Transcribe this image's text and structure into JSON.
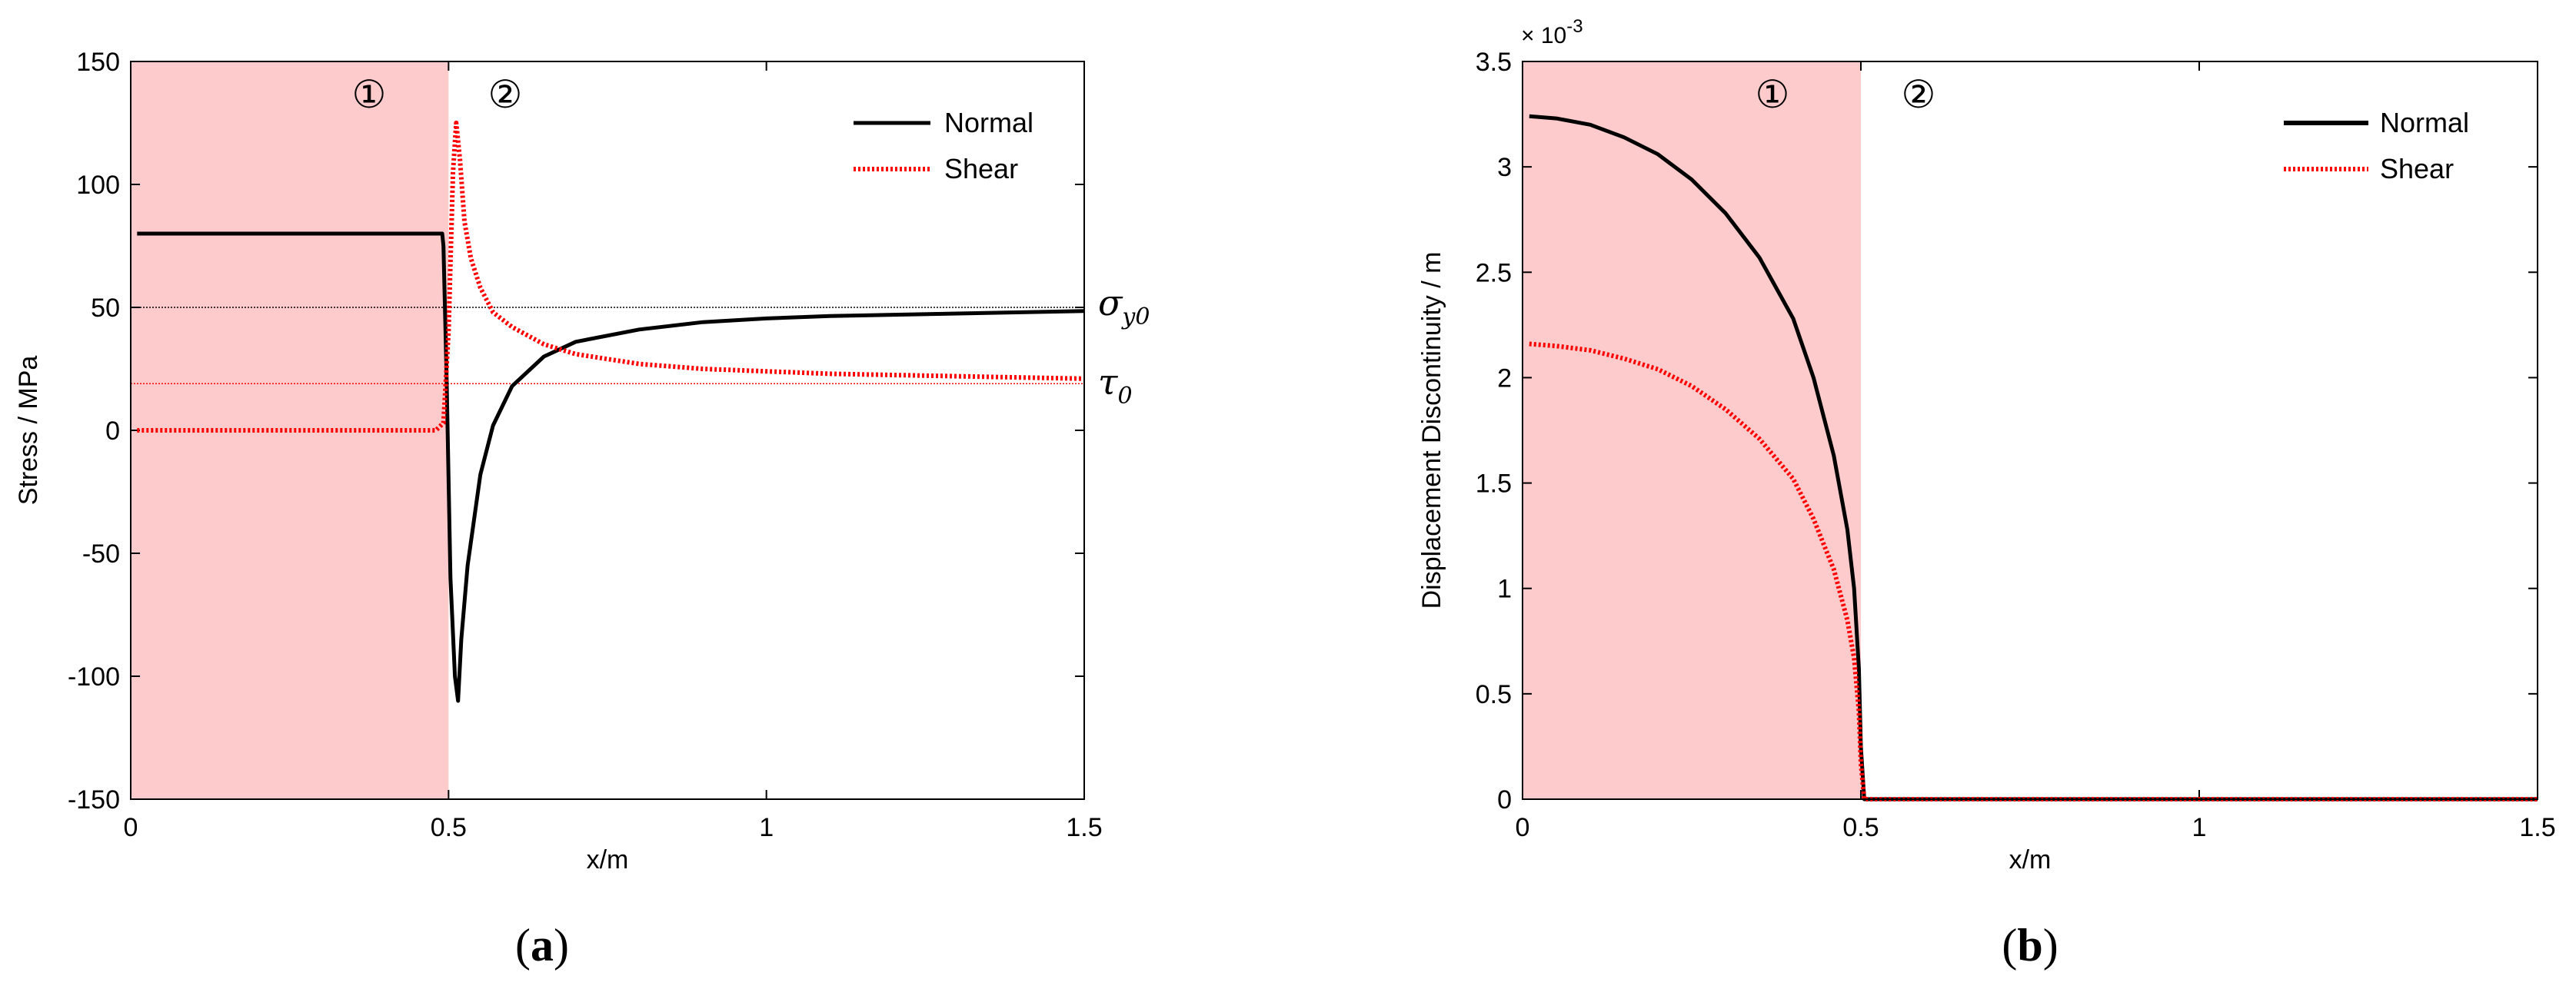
{
  "colors": {
    "shade": "#fdcbcb",
    "normal": "#000000",
    "shear": "#ff0000"
  },
  "chart_data": [
    {
      "type": "line",
      "ylabel": "Stress / MPa",
      "xlabel": "x/m",
      "xlim": [
        0,
        1.5
      ],
      "ylim": [
        -150,
        150
      ],
      "xticks": [
        "0",
        "0.5",
        "1",
        "1.5"
      ],
      "yticks": [
        "-150",
        "-100",
        "-50",
        "0",
        "50",
        "100",
        "150"
      ],
      "shaded_region_x": [
        0,
        0.5
      ],
      "region_labels": [
        "①",
        "②"
      ],
      "legend": {
        "placement": "top-right",
        "entries": [
          "Normal",
          "Shear"
        ]
      },
      "reference_lines": [
        {
          "y": 50,
          "label_main": "σ",
          "label_sub": "y0",
          "color": "#000000"
        },
        {
          "y": 19,
          "label_main": "τ",
          "label_sub": "0",
          "color": "#ff0000"
        }
      ],
      "series": [
        {
          "name": "Normal",
          "x": [
            0.01,
            0.49,
            0.492,
            0.497,
            0.503,
            0.51,
            0.515,
            0.52,
            0.53,
            0.55,
            0.57,
            0.6,
            0.65,
            0.7,
            0.8,
            0.9,
            1.0,
            1.1,
            1.2,
            1.3,
            1.4,
            1.5
          ],
          "y": [
            80,
            80,
            75,
            20,
            -60,
            -100,
            -110,
            -85,
            -55,
            -18,
            2,
            18,
            30,
            36,
            41,
            44,
            45.5,
            46.5,
            47,
            47.5,
            48,
            48.5
          ]
        },
        {
          "name": "Shear",
          "x": [
            0.01,
            0.48,
            0.492,
            0.5,
            0.507,
            0.512,
            0.518,
            0.525,
            0.535,
            0.55,
            0.57,
            0.6,
            0.65,
            0.7,
            0.8,
            0.9,
            1.0,
            1.1,
            1.2,
            1.3,
            1.4,
            1.5
          ],
          "y": [
            0,
            0,
            3,
            40,
            105,
            125,
            110,
            85,
            70,
            58,
            48,
            42,
            35,
            31,
            27,
            25,
            24,
            23,
            22.5,
            22,
            21.5,
            21
          ]
        }
      ],
      "caption": "a"
    },
    {
      "type": "line",
      "ylabel": "Displacement Discontinuity / m",
      "xlabel": "x/m",
      "xlim": [
        0,
        1.5
      ],
      "ylim": [
        0,
        3.5
      ],
      "scale_factor": "× 10",
      "scale_exponent": "-3",
      "xticks": [
        "0",
        "0.5",
        "1",
        "1.5"
      ],
      "yticks": [
        "0",
        "0.5",
        "1",
        "1.5",
        "2",
        "2.5",
        "3",
        "3.5"
      ],
      "shaded_region_x": [
        0,
        0.5
      ],
      "region_labels": [
        "①",
        "②"
      ],
      "legend": {
        "placement": "top-right",
        "entries": [
          "Normal",
          "Shear"
        ]
      },
      "series": [
        {
          "name": "Normal",
          "x": [
            0.01,
            0.05,
            0.1,
            0.15,
            0.2,
            0.25,
            0.3,
            0.35,
            0.4,
            0.43,
            0.46,
            0.48,
            0.49,
            0.497,
            0.5,
            0.505,
            0.6,
            0.8,
            1.0,
            1.2,
            1.4,
            1.5
          ],
          "y": [
            3.24,
            3.23,
            3.2,
            3.14,
            3.06,
            2.94,
            2.78,
            2.57,
            2.28,
            2.0,
            1.63,
            1.28,
            1.0,
            0.62,
            0.25,
            0.0,
            0.0,
            0.0,
            0.0,
            0.0,
            0.0,
            0.0
          ]
        },
        {
          "name": "Shear",
          "x": [
            0.01,
            0.05,
            0.1,
            0.15,
            0.2,
            0.25,
            0.3,
            0.35,
            0.4,
            0.43,
            0.46,
            0.48,
            0.49,
            0.497,
            0.5,
            0.505,
            0.6,
            0.8,
            1.0,
            1.2,
            1.4,
            1.5
          ],
          "y": [
            2.16,
            2.15,
            2.13,
            2.09,
            2.04,
            1.96,
            1.85,
            1.71,
            1.52,
            1.33,
            1.09,
            0.85,
            0.67,
            0.42,
            0.17,
            0.0,
            0.0,
            0.0,
            0.0,
            0.0,
            0.0,
            0.0
          ]
        }
      ],
      "caption": "b"
    }
  ]
}
